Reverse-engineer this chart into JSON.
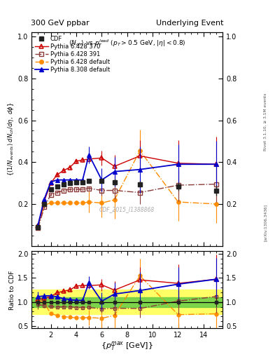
{
  "title_left": "300 GeV ppbar",
  "title_right": "Underlying Event",
  "annotation": "$\\langle N_{ch}\\rangle$ vs $p_T^{lead}$ ($p_T > 0.5$ GeV, $|\\eta| < 0.8$)",
  "watermark": "CDF_2015_I1388868",
  "right_label1": "Rivet 3.1.10, ≥ 3.1M events",
  "right_label2": "[arXiv:1306.3436]",
  "cdf_x": [
    1.0,
    1.5,
    2.0,
    2.5,
    3.0,
    3.5,
    4.0,
    4.5,
    5.0,
    6.0,
    7.0,
    9.0,
    12.0,
    15.0
  ],
  "cdf_y": [
    0.09,
    0.2,
    0.27,
    0.285,
    0.295,
    0.3,
    0.305,
    0.305,
    0.31,
    0.31,
    0.305,
    0.295,
    0.285,
    0.265
  ],
  "cdf_yerr": [
    0.008,
    0.008,
    0.008,
    0.007,
    0.007,
    0.007,
    0.007,
    0.007,
    0.007,
    0.01,
    0.015,
    0.015,
    0.02,
    0.025
  ],
  "py6370_x": [
    1.0,
    1.5,
    2.0,
    2.5,
    3.0,
    3.5,
    4.0,
    4.5,
    5.0,
    6.0,
    7.0,
    9.0,
    12.0,
    15.0
  ],
  "py6370_y": [
    0.095,
    0.215,
    0.3,
    0.34,
    0.36,
    0.375,
    0.405,
    0.41,
    0.415,
    0.42,
    0.38,
    0.43,
    0.395,
    0.39
  ],
  "py6370_yerr": [
    0.004,
    0.006,
    0.008,
    0.008,
    0.008,
    0.01,
    0.01,
    0.01,
    0.012,
    0.035,
    0.055,
    0.075,
    0.11,
    0.13
  ],
  "py6391_x": [
    1.0,
    1.5,
    2.0,
    2.5,
    3.0,
    3.5,
    4.0,
    4.5,
    5.0,
    6.0,
    7.0,
    9.0,
    12.0,
    15.0
  ],
  "py6391_y": [
    0.085,
    0.185,
    0.245,
    0.255,
    0.265,
    0.27,
    0.27,
    0.27,
    0.275,
    0.265,
    0.265,
    0.255,
    0.29,
    0.295
  ],
  "py6391_yerr": [
    0.003,
    0.005,
    0.006,
    0.006,
    0.007,
    0.007,
    0.007,
    0.007,
    0.008,
    0.025,
    0.04,
    0.055,
    0.075,
    0.085
  ],
  "py6def_x": [
    1.0,
    1.5,
    2.0,
    2.5,
    3.0,
    3.5,
    4.0,
    4.5,
    5.0,
    6.0,
    7.0,
    9.0,
    12.0,
    15.0
  ],
  "py6def_y": [
    0.095,
    0.195,
    0.205,
    0.205,
    0.205,
    0.205,
    0.205,
    0.205,
    0.21,
    0.205,
    0.22,
    0.455,
    0.21,
    0.2
  ],
  "py6def_yerr": [
    0.004,
    0.006,
    0.006,
    0.006,
    0.006,
    0.006,
    0.006,
    0.006,
    0.05,
    0.07,
    0.09,
    0.1,
    0.09,
    0.09
  ],
  "py8def_x": [
    1.0,
    1.5,
    2.0,
    2.5,
    3.0,
    3.5,
    4.0,
    4.5,
    5.0,
    6.0,
    7.0,
    9.0,
    12.0,
    15.0
  ],
  "py8def_y": [
    0.1,
    0.225,
    0.305,
    0.315,
    0.315,
    0.315,
    0.315,
    0.315,
    0.435,
    0.315,
    0.355,
    0.365,
    0.39,
    0.39
  ],
  "py8def_yerr": [
    0.004,
    0.006,
    0.008,
    0.008,
    0.008,
    0.008,
    0.008,
    0.008,
    0.04,
    0.055,
    0.07,
    0.11,
    0.095,
    0.11
  ],
  "cdf_color": "#222222",
  "py6370_color": "#cc0000",
  "py6391_color": "#8b3a3a",
  "py6def_color": "#ff8c00",
  "py8def_color": "#0000cc",
  "xlim": [
    0.5,
    15.5
  ],
  "main_ylim": [
    0.0,
    1.02
  ],
  "ratio_ylim": [
    0.45,
    2.05
  ],
  "main_yticks": [
    0.2,
    0.4,
    0.6,
    0.8,
    1.0
  ],
  "ratio_yticks": [
    0.5,
    1.0,
    1.5,
    2.0
  ]
}
